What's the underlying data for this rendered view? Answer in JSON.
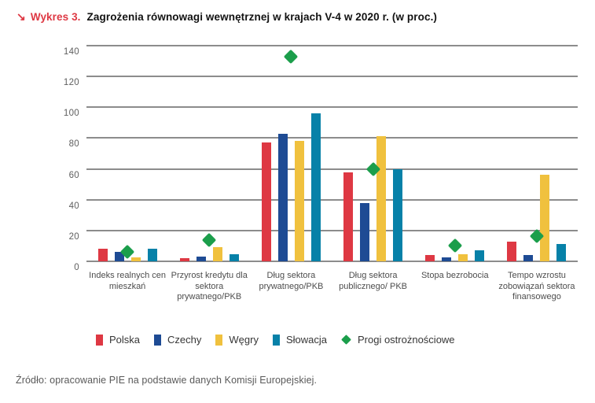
{
  "figure": {
    "arrow_glyph": "↘",
    "label": "Wykres 3.",
    "title": "Zagrożenia równowagi wewnętrznej w krajach V-4 w 2020 r. (w proc.)"
  },
  "source_note": "Źródło: opracowanie PIE na podstawie danych Komisji Europejskiej.",
  "colors": {
    "accent_red": "#DE3843",
    "gridline": "#8C8C8C",
    "axis_text": "#5F5F5F",
    "category_text": "#4D4D4D",
    "legend_text": "#363636",
    "source_text": "#595959"
  },
  "chart_data": {
    "type": "bar",
    "title": "Zagrożenia równowagi wewnętrznej w krajach V-4 w 2020 r. (w proc.)",
    "categories": [
      "Indeks realnych cen mieszkań",
      "Przyrost kredytu dla sektora prywatnego/PKB",
      "Dług sektora prywatnego/PKB",
      "Dług sektora publicznego/ PKB",
      "Stopa bezrobocia",
      "Tempo wzrostu zobowiązań sektora finansowego"
    ],
    "series": [
      {
        "name": "Polska",
        "color": "#DE3843",
        "values": [
          8,
          2,
          77,
          58,
          4,
          13
        ]
      },
      {
        "name": "Czechy",
        "color": "#1E4B94",
        "values": [
          6,
          3,
          83,
          38,
          2.5,
          4
        ]
      },
      {
        "name": "Węgry",
        "color": "#F0C13E",
        "values": [
          2.5,
          9,
          78,
          81,
          4.5,
          56
        ]
      },
      {
        "name": "Słowacja",
        "color": "#0781A8",
        "values": [
          8,
          4.5,
          96,
          60,
          7,
          11
        ]
      }
    ],
    "thresholds": {
      "name": "Progi ostrożnościowe",
      "marker": "diamond",
      "color": "#1B9E4B",
      "values": [
        6,
        14,
        133,
        60,
        10,
        16.5
      ]
    },
    "xlabel": "",
    "ylabel": "",
    "ylim": [
      0,
      140
    ],
    "ytick_step": 20,
    "grid": true,
    "legend_position": "bottom"
  }
}
